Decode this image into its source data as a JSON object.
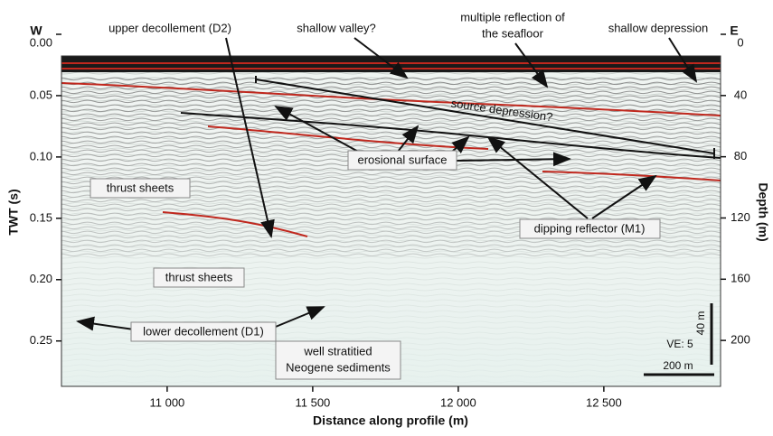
{
  "chart_data": {
    "type": "seismic-section",
    "xlabel": "Distance along profile (m)",
    "ylabel": "TWT (s)",
    "y2label": "Depth (m)",
    "west": "W",
    "east": "E",
    "xlim": [
      10637,
      12901
    ],
    "xticks": [
      {
        "value": 11000,
        "label": "11 000"
      },
      {
        "value": 11500,
        "label": "11 500"
      },
      {
        "value": 12000,
        "label": "12 000"
      },
      {
        "value": 12500,
        "label": "12 500"
      }
    ],
    "ylim": [
      0.287,
      0
    ],
    "y_inverted": true,
    "yticks": [
      {
        "value": 0,
        "label": "0.00"
      },
      {
        "value": 0.05,
        "label": "0.05"
      },
      {
        "value": 0.1,
        "label": "0.10"
      },
      {
        "value": 0.15,
        "label": "0.15"
      },
      {
        "value": 0.2,
        "label": "0.20"
      },
      {
        "value": 0.25,
        "label": "0.25"
      }
    ],
    "y2lim": [
      230,
      0
    ],
    "y2ticks": [
      0,
      40,
      80,
      120,
      160,
      200
    ],
    "annotations": {
      "upper_decollement": "upper decollement (D2)",
      "shallow_valley": "shallow valley?",
      "multiple_reflection": [
        "multiple reflection of",
        "the seafloor"
      ],
      "shallow_depression": "shallow depression",
      "source_depression": "source depression?",
      "erosional_surface": "erosional surface",
      "thrust_sheets_upper": "thrust sheets",
      "dipping_reflector": "dipping reflector (M1)",
      "thrust_sheets_lower": "thrust sheets",
      "lower_decollement": "lower decollement (D1)",
      "neogene": [
        "well stratitied",
        "Neogene sediments"
      ],
      "ve": "VE: 5",
      "vertical_scale": "40 m",
      "horizontal_scale": "200 m"
    }
  }
}
